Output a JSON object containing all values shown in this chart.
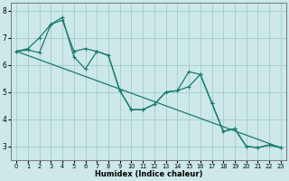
{
  "xlabel": "Humidex (Indice chaleur)",
  "bg_color": "#cce8e8",
  "line_color": "#1a7a6e",
  "grid_color": "#aacfcf",
  "x_values": [
    0,
    1,
    2,
    3,
    4,
    5,
    6,
    7,
    8,
    9,
    10,
    11,
    12,
    13,
    14,
    15,
    16,
    17,
    18,
    19,
    20,
    21,
    22,
    23
  ],
  "line1": [
    6.5,
    6.6,
    7.0,
    7.5,
    7.75,
    6.3,
    5.85,
    6.5,
    6.35,
    5.05,
    4.35,
    4.35,
    4.55,
    5.0,
    5.05,
    5.75,
    5.65,
    4.6,
    3.55,
    3.65,
    3.0,
    2.95,
    3.05,
    2.95
  ],
  "line3": [
    6.5,
    6.55,
    6.45,
    7.5,
    7.65,
    6.5,
    6.6,
    6.5,
    6.35,
    5.05,
    4.35,
    4.35,
    4.55,
    5.0,
    5.05,
    5.2,
    5.65,
    4.6,
    3.55,
    3.65,
    3.0,
    2.95,
    3.05,
    2.95
  ],
  "xlim": [
    -0.5,
    23.5
  ],
  "ylim": [
    2.5,
    8.3
  ],
  "yticks": [
    3,
    4,
    5,
    6,
    7,
    8
  ],
  "xticks": [
    0,
    1,
    2,
    3,
    4,
    5,
    6,
    7,
    8,
    9,
    10,
    11,
    12,
    13,
    14,
    15,
    16,
    17,
    18,
    19,
    20,
    21,
    22,
    23
  ]
}
